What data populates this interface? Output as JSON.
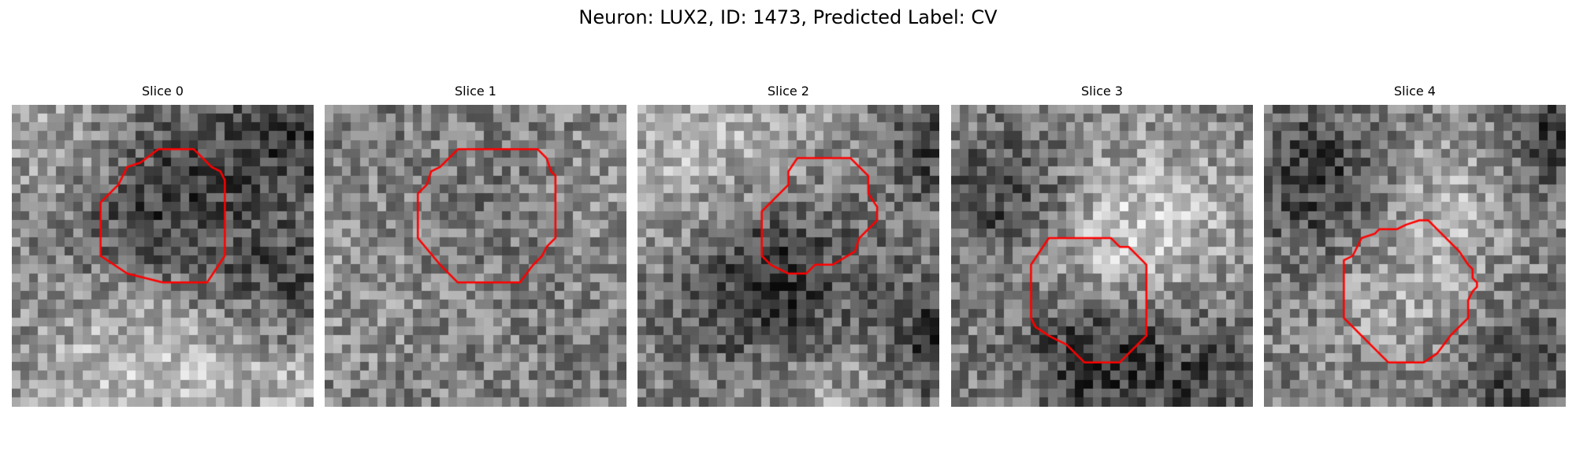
{
  "figure": {
    "title": "Neuron: LUX2, ID: 1473, Predicted Label: CV"
  },
  "colors": {
    "contour": "#ff0000",
    "background": "#ffffff"
  },
  "panels": [
    {
      "title": "Slice 0",
      "contour_pts": [
        [
          16.5,
          5
        ],
        [
          20.5,
          5
        ],
        [
          22,
          6.5
        ],
        [
          22.5,
          7
        ],
        [
          23.5,
          7.5
        ],
        [
          24,
          8.5
        ],
        [
          24,
          17
        ],
        [
          22,
          20
        ],
        [
          17,
          20
        ],
        [
          13,
          19
        ],
        [
          10,
          17
        ],
        [
          10,
          11
        ],
        [
          12,
          9
        ],
        [
          13,
          7
        ],
        [
          14.5,
          6.5
        ]
      ],
      "dark_blob": [
        [
          17,
          12.5,
          7.5,
          -80
        ],
        [
          31,
          20,
          5,
          -50
        ],
        [
          31,
          3,
          5,
          -70
        ]
      ],
      "bright_blob": [
        [
          15,
          28,
          9,
          70
        ],
        [
          5,
          4,
          5,
          45
        ],
        [
          32,
          32,
          5,
          40
        ]
      ]
    },
    {
      "title": "Slice 1",
      "contour_pts": [
        [
          15,
          5
        ],
        [
          24,
          5
        ],
        [
          25,
          6
        ],
        [
          25.5,
          7.5
        ],
        [
          26,
          8
        ],
        [
          26,
          15
        ],
        [
          25,
          16
        ],
        [
          24.5,
          17
        ],
        [
          23.5,
          18
        ],
        [
          22,
          20
        ],
        [
          15,
          20
        ],
        [
          13,
          18
        ],
        [
          10.5,
          15
        ],
        [
          10.5,
          10
        ],
        [
          11.5,
          9
        ],
        [
          12,
          7.5
        ],
        [
          13,
          7
        ]
      ],
      "dark_blob": [
        [
          18,
          13,
          7,
          -15
        ]
      ],
      "bright_blob": [
        [
          4,
          20,
          8,
          20
        ],
        [
          30,
          10,
          6,
          20
        ]
      ]
    },
    {
      "title": "Slice 2",
      "contour_pts": [
        [
          18,
          6
        ],
        [
          24,
          6
        ],
        [
          26,
          8
        ],
        [
          26,
          10
        ],
        [
          27,
          11.5
        ],
        [
          27,
          13
        ],
        [
          25,
          15
        ],
        [
          24.5,
          16.5
        ],
        [
          22,
          18
        ],
        [
          20,
          18
        ],
        [
          19,
          19
        ],
        [
          17,
          19
        ],
        [
          15,
          18
        ],
        [
          14.5,
          17.5
        ],
        [
          14,
          17
        ],
        [
          14,
          12
        ],
        [
          15,
          11
        ],
        [
          16,
          10
        ],
        [
          17,
          9
        ],
        [
          17,
          7.5
        ]
      ],
      "dark_blob": [
        [
          14,
          19,
          7,
          -100
        ],
        [
          34,
          26,
          5,
          -90
        ],
        [
          33,
          5,
          4,
          -60
        ]
      ],
      "bright_blob": [
        [
          8,
          6,
          9,
          60
        ],
        [
          22,
          33,
          7,
          40
        ]
      ]
    },
    {
      "title": "Slice 3",
      "contour_pts": [
        [
          11,
          15
        ],
        [
          18,
          15
        ],
        [
          19,
          16
        ],
        [
          20,
          16
        ],
        [
          21.5,
          17.5
        ],
        [
          22,
          18
        ],
        [
          22,
          26
        ],
        [
          20,
          28
        ],
        [
          19,
          29
        ],
        [
          15,
          29
        ],
        [
          13,
          27
        ],
        [
          12,
          26.5
        ],
        [
          11,
          26
        ],
        [
          9.5,
          25
        ],
        [
          9,
          24
        ],
        [
          9,
          18
        ]
      ],
      "dark_blob": [
        [
          16,
          27,
          6,
          -90
        ],
        [
          6,
          10,
          5,
          -60
        ],
        [
          28,
          30,
          5,
          -50
        ]
      ],
      "bright_blob": [
        [
          22,
          13,
          7,
          70
        ],
        [
          15,
          19,
          5,
          40
        ]
      ]
    },
    {
      "title": "Slice 4",
      "contour_pts": [
        [
          17.5,
          13
        ],
        [
          18.5,
          13
        ],
        [
          20,
          14.5
        ],
        [
          22,
          16.5
        ],
        [
          23,
          18
        ],
        [
          23.5,
          18.5
        ],
        [
          23.5,
          19.5
        ],
        [
          24,
          20
        ],
        [
          24,
          20.5
        ],
        [
          23.5,
          21
        ],
        [
          23,
          22
        ],
        [
          23,
          24
        ],
        [
          21,
          26
        ],
        [
          19.5,
          28
        ],
        [
          18,
          29
        ],
        [
          14,
          29
        ],
        [
          11,
          26
        ],
        [
          9,
          24
        ],
        [
          9,
          17.5
        ],
        [
          10,
          17
        ],
        [
          10.5,
          16
        ],
        [
          11,
          15
        ],
        [
          12.5,
          14.5
        ],
        [
          13,
          14
        ],
        [
          15,
          14
        ],
        [
          16,
          13.5
        ]
      ],
      "dark_blob": [
        [
          6,
          8,
          6,
          -70
        ],
        [
          33,
          3,
          5,
          -70
        ],
        [
          28,
          31,
          6,
          -50
        ]
      ],
      "bright_blob": [
        [
          20,
          10,
          6,
          50
        ],
        [
          15,
          22,
          6,
          40
        ]
      ]
    }
  ]
}
